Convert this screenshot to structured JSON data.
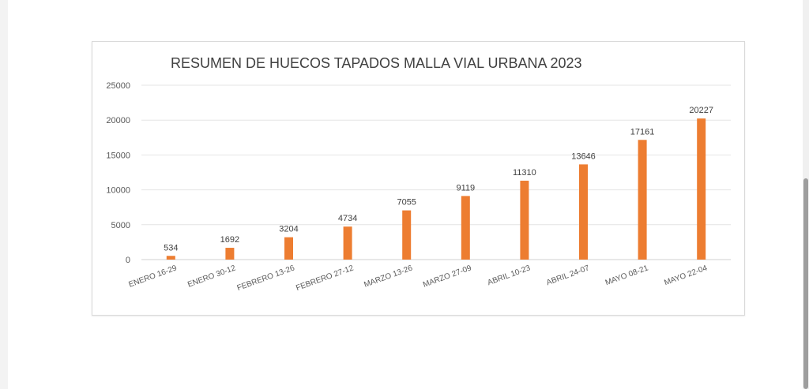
{
  "chart_data": {
    "type": "bar",
    "title": "RESUMEN DE HUECOS TAPADOS MALLA VIAL URBANA 2023",
    "xlabel": "",
    "ylabel": "",
    "categories": [
      "ENERO 16-29",
      "ENERO 30-12",
      "FEBRERO 13-26",
      "FEBRERO 27-12",
      "MARZO 13-26",
      "MARZO 27-09",
      "ABRIL 10-23",
      "ABRIL 24-07",
      "MAYO 08-21",
      "MAYO 22-04"
    ],
    "values": [
      534,
      1692,
      3204,
      4734,
      7055,
      9119,
      11310,
      13646,
      17161,
      20227
    ],
    "value_labels": [
      "534",
      "1692",
      "3204",
      "4734",
      "7055",
      "9119",
      "11310",
      "13646",
      "17161",
      "20227"
    ],
    "ylim": [
      0,
      25000
    ],
    "yticks": [
      0,
      5000,
      10000,
      15000,
      20000,
      25000
    ],
    "ytick_labels": [
      "0",
      "5000",
      "10000",
      "15000",
      "20000",
      "25000"
    ],
    "grid": true,
    "legend": "none",
    "bar_color": "#ed7d31"
  }
}
